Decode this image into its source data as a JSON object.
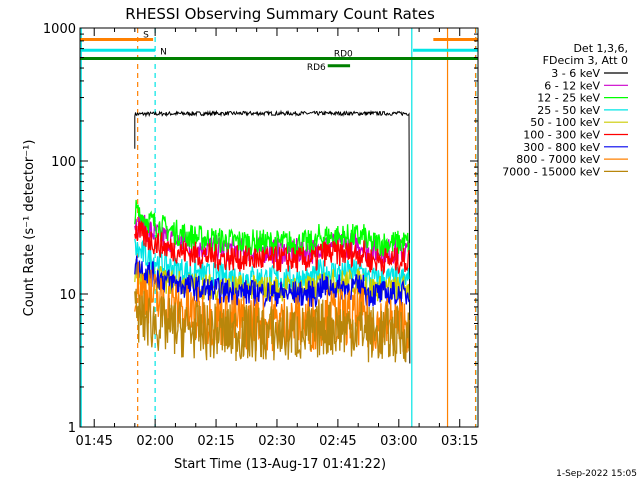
{
  "chart_data": {
    "type": "line",
    "title": "RHESSI Observing Summary Count Rates",
    "xlabel": "Start Time (13-Aug-17 01:41:22)",
    "ylabel": "Count Rate (s⁻¹ detector⁻¹)",
    "y_scale": "log",
    "ylim": [
      1,
      1000
    ],
    "xlim_minutes": [
      101.5,
      199.5
    ],
    "x_ticks": [
      {
        "minute": 105,
        "label": "01:45"
      },
      {
        "minute": 120,
        "label": "02:00"
      },
      {
        "minute": 135,
        "label": "02:15"
      },
      {
        "minute": 150,
        "label": "02:30"
      },
      {
        "minute": 165,
        "label": "02:45"
      },
      {
        "minute": 180,
        "label": "03:00"
      },
      {
        "minute": 195,
        "label": "03:15"
      }
    ],
    "y_ticks": [
      {
        "value": 1,
        "label": "1"
      },
      {
        "value": 10,
        "label": "10"
      },
      {
        "value": 100,
        "label": "100"
      },
      {
        "value": 1000,
        "label": "1000"
      }
    ],
    "legend_header": [
      "Det 1,3,6,",
      "FDecim 3, Att 0"
    ],
    "data_start_minute": 115.0,
    "data_end_minute": 182.5,
    "series": [
      {
        "name": "3 - 6 keV",
        "color": "#000000",
        "start": 225,
        "level": 228,
        "end": 226
      },
      {
        "name": "6 - 12 keV",
        "color": "#cc00cc",
        "start": 35,
        "level": 21,
        "end": 22
      },
      {
        "name": "12 - 25 keV",
        "color": "#00ff00",
        "start": 42,
        "level": 24,
        "end": 26
      },
      {
        "name": "25 - 50 keV",
        "color": "#00e5e5",
        "start": 22,
        "level": 13,
        "end": 12
      },
      {
        "name": "50 - 100 keV",
        "color": "#cccc00",
        "start": 15,
        "level": 11,
        "end": 10
      },
      {
        "name": "100 - 300 keV",
        "color": "#ff0000",
        "start": 30,
        "level": 18,
        "end": 16
      },
      {
        "name": "300 - 800 keV",
        "color": "#0000ee",
        "start": 17,
        "level": 10,
        "end": 9
      },
      {
        "name": "800 - 7000 keV",
        "color": "#ff8000",
        "start": 12,
        "level": 6,
        "end": 5.5
      },
      {
        "name": "7000 - 15000 keV",
        "color": "#b8860b",
        "start": 7,
        "level": 5,
        "end": 5
      }
    ],
    "flags": [
      {
        "label": "S",
        "color": "#ff8000",
        "y_value": 820,
        "intervals": [
          [
            101.5,
            119.5
          ],
          [
            188.5,
            199.5
          ]
        ]
      },
      {
        "label": "N",
        "color": "#00e5e5",
        "y_value": 680,
        "intervals": [
          [
            101.5,
            120.0
          ],
          [
            183.5,
            199.5
          ]
        ]
      },
      {
        "label": "RD0",
        "color": "#008000",
        "y_value": 590,
        "intervals": [
          [
            101.5,
            199.5
          ]
        ]
      },
      {
        "label": "RD6",
        "color": "#008000",
        "y_value": 520,
        "intervals": [
          [
            162.5,
            168.0
          ]
        ]
      }
    ],
    "vlines": [
      {
        "minute": 101.8,
        "color": "#00e5e5",
        "dash": false
      },
      {
        "minute": 115.7,
        "color": "#ff8000",
        "dash": true
      },
      {
        "minute": 120.0,
        "color": "#00e5e5",
        "dash": true
      },
      {
        "minute": 183.2,
        "color": "#00e5e5",
        "dash": false
      },
      {
        "minute": 192.0,
        "color": "#ff8000",
        "dash": false
      },
      {
        "minute": 199.0,
        "color": "#00e5e5",
        "dash": true
      },
      {
        "minute": 198.9,
        "color": "#ff8000",
        "dash": true
      }
    ],
    "footer": "1-Sep-2022 15:05"
  }
}
